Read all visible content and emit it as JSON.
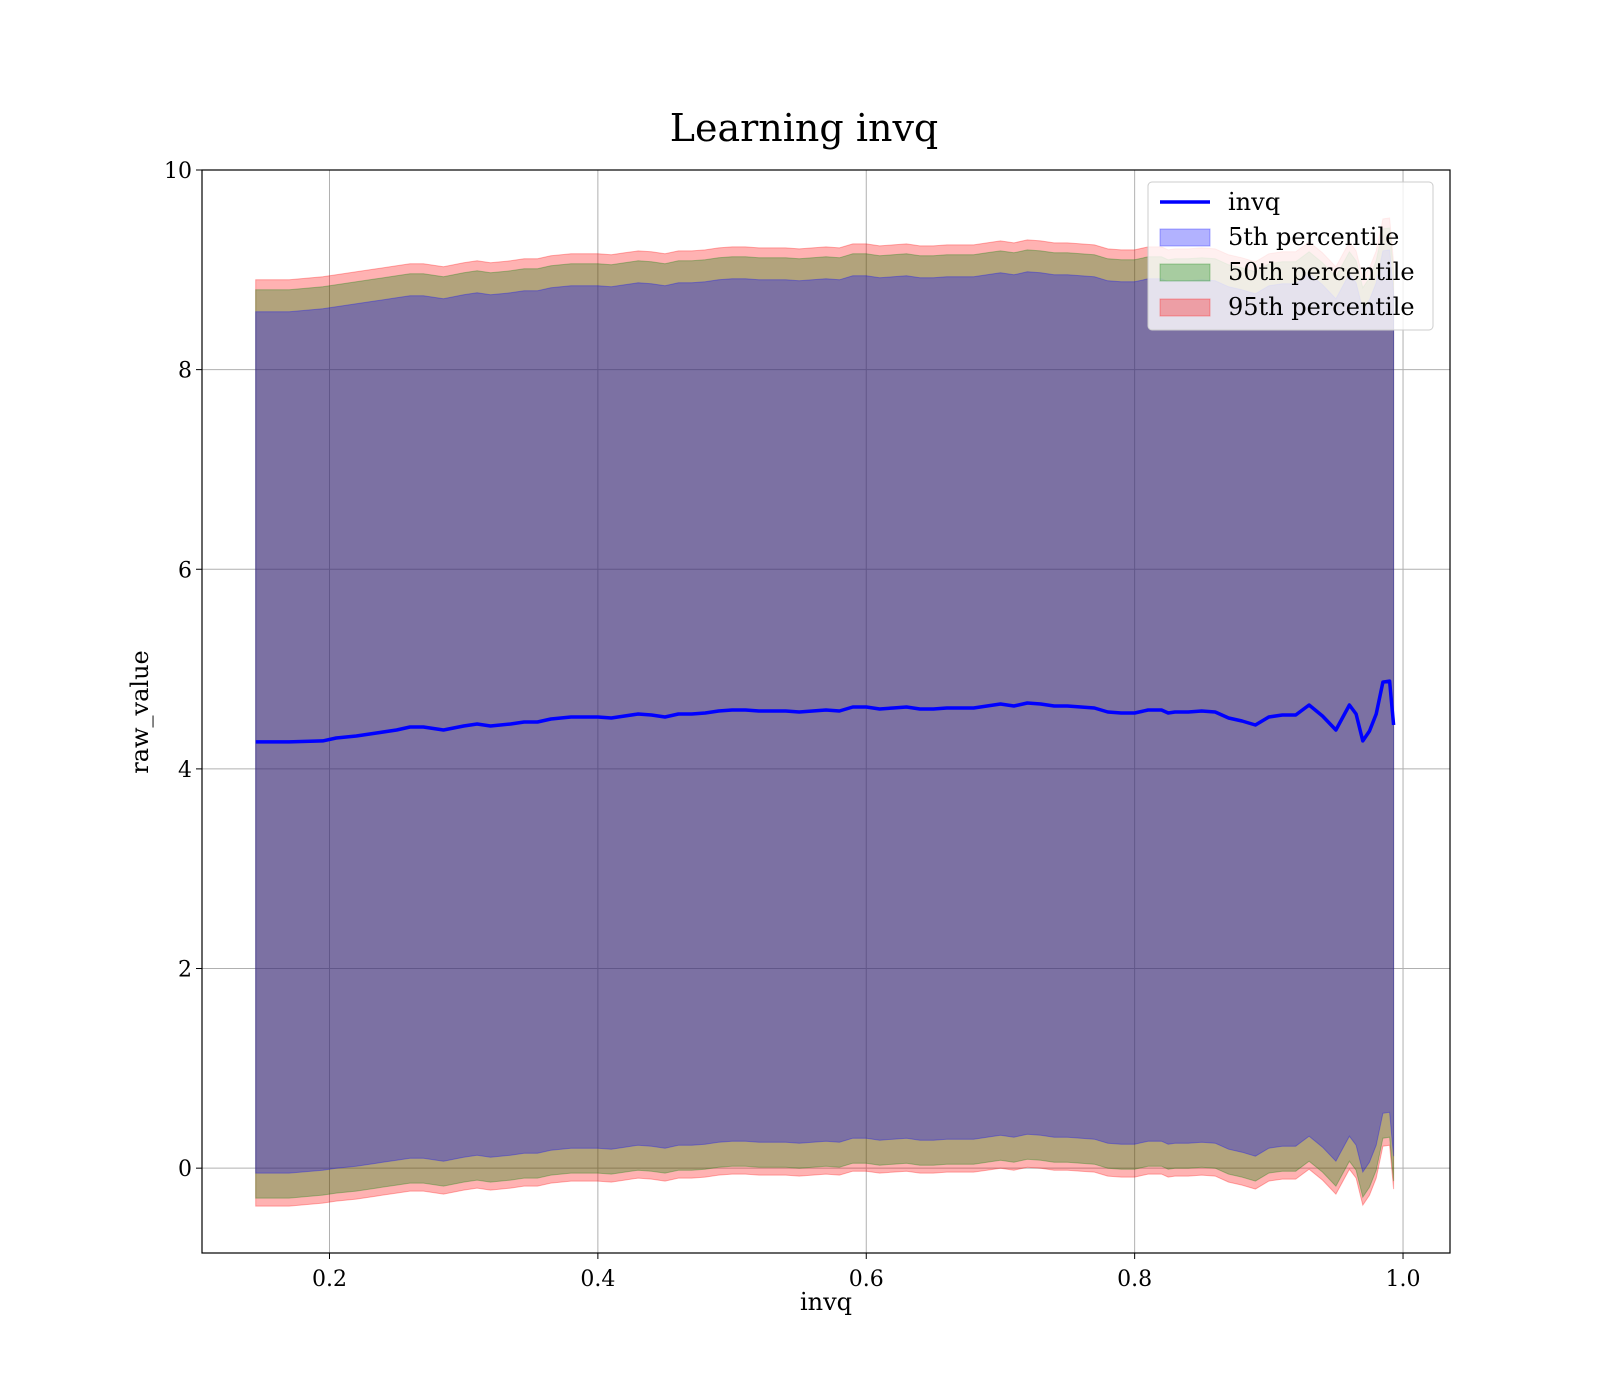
{
  "chart_data": {
    "type": "area",
    "title": "Learning invq",
    "xlabel": "invq",
    "ylabel": "raw_value",
    "xlim": [
      0.105,
      1.035
    ],
    "ylim": [
      -0.85,
      10.0
    ],
    "xticks": [
      0.2,
      0.4,
      0.6,
      0.8,
      1.0
    ],
    "xtick_labels": [
      "0.2",
      "0.4",
      "0.6",
      "0.8",
      "1.0"
    ],
    "yticks": [
      0,
      2,
      4,
      6,
      8,
      10
    ],
    "ytick_labels": [
      "0",
      "2",
      "4",
      "6",
      "8",
      "10"
    ],
    "grid": true,
    "legend_position": "top-right",
    "x": [
      0.145,
      0.17,
      0.195,
      0.205,
      0.22,
      0.235,
      0.25,
      0.26,
      0.27,
      0.285,
      0.3,
      0.31,
      0.32,
      0.335,
      0.345,
      0.355,
      0.365,
      0.38,
      0.39,
      0.4,
      0.41,
      0.42,
      0.43,
      0.44,
      0.45,
      0.46,
      0.47,
      0.48,
      0.49,
      0.5,
      0.51,
      0.52,
      0.53,
      0.54,
      0.55,
      0.56,
      0.57,
      0.58,
      0.59,
      0.6,
      0.61,
      0.62,
      0.63,
      0.64,
      0.65,
      0.66,
      0.67,
      0.68,
      0.69,
      0.7,
      0.71,
      0.72,
      0.73,
      0.74,
      0.75,
      0.76,
      0.77,
      0.78,
      0.79,
      0.8,
      0.81,
      0.82,
      0.825,
      0.83,
      0.84,
      0.85,
      0.86,
      0.87,
      0.88,
      0.89,
      0.9,
      0.91,
      0.92,
      0.93,
      0.94,
      0.95,
      0.96,
      0.965,
      0.97,
      0.975,
      0.98,
      0.985,
      0.99,
      0.993
    ],
    "series": [
      {
        "name": "invq",
        "color": "#0000ff",
        "values": [
          4.27,
          4.27,
          4.28,
          4.31,
          4.33,
          4.36,
          4.39,
          4.42,
          4.42,
          4.39,
          4.43,
          4.45,
          4.43,
          4.45,
          4.47,
          4.47,
          4.5,
          4.52,
          4.52,
          4.52,
          4.51,
          4.53,
          4.55,
          4.54,
          4.52,
          4.55,
          4.55,
          4.56,
          4.58,
          4.59,
          4.59,
          4.58,
          4.58,
          4.58,
          4.57,
          4.58,
          4.59,
          4.58,
          4.62,
          4.62,
          4.6,
          4.61,
          4.62,
          4.6,
          4.6,
          4.61,
          4.61,
          4.61,
          4.63,
          4.65,
          4.63,
          4.66,
          4.65,
          4.63,
          4.63,
          4.62,
          4.61,
          4.57,
          4.56,
          4.56,
          4.59,
          4.59,
          4.56,
          4.57,
          4.57,
          4.58,
          4.57,
          4.51,
          4.48,
          4.44,
          4.52,
          4.54,
          4.54,
          4.64,
          4.53,
          4.39,
          4.64,
          4.55,
          4.28,
          4.38,
          4.55,
          4.87,
          4.88,
          4.44
        ]
      },
      {
        "name": "5th percentile",
        "color": "#0000ff",
        "opacity": 0.3,
        "lower": [
          -0.05,
          -0.05,
          -0.02,
          0.0,
          0.02,
          0.05,
          0.08,
          0.1,
          0.1,
          0.07,
          0.11,
          0.13,
          0.11,
          0.13,
          0.15,
          0.15,
          0.18,
          0.2,
          0.2,
          0.2,
          0.19,
          0.21,
          0.23,
          0.22,
          0.2,
          0.23,
          0.23,
          0.24,
          0.26,
          0.27,
          0.27,
          0.26,
          0.26,
          0.26,
          0.25,
          0.26,
          0.27,
          0.26,
          0.3,
          0.3,
          0.28,
          0.29,
          0.3,
          0.28,
          0.28,
          0.29,
          0.29,
          0.29,
          0.31,
          0.33,
          0.31,
          0.34,
          0.33,
          0.31,
          0.31,
          0.3,
          0.29,
          0.25,
          0.24,
          0.24,
          0.27,
          0.27,
          0.24,
          0.25,
          0.25,
          0.26,
          0.25,
          0.19,
          0.16,
          0.12,
          0.2,
          0.22,
          0.22,
          0.32,
          0.21,
          0.07,
          0.32,
          0.23,
          -0.04,
          0.06,
          0.23,
          0.55,
          0.56,
          0.12
        ],
        "upper": [
          8.58,
          8.58,
          8.61,
          8.63,
          8.66,
          8.69,
          8.72,
          8.74,
          8.74,
          8.71,
          8.75,
          8.77,
          8.75,
          8.77,
          8.79,
          8.79,
          8.82,
          8.84,
          8.84,
          8.84,
          8.83,
          8.85,
          8.87,
          8.86,
          8.84,
          8.87,
          8.87,
          8.88,
          8.9,
          8.91,
          8.91,
          8.9,
          8.9,
          8.9,
          8.89,
          8.9,
          8.91,
          8.9,
          8.94,
          8.94,
          8.92,
          8.93,
          8.94,
          8.92,
          8.92,
          8.93,
          8.93,
          8.93,
          8.95,
          8.97,
          8.95,
          8.98,
          8.97,
          8.95,
          8.95,
          8.94,
          8.93,
          8.89,
          8.88,
          8.88,
          8.91,
          8.91,
          8.88,
          8.89,
          8.89,
          8.9,
          8.89,
          8.83,
          8.8,
          8.76,
          8.84,
          8.86,
          8.86,
          8.96,
          8.85,
          8.71,
          8.96,
          8.87,
          8.6,
          8.7,
          8.87,
          9.19,
          9.2,
          8.76
        ]
      },
      {
        "name": "50th percentile",
        "color": "#008000",
        "opacity": 0.3,
        "lower": [
          -0.3,
          -0.3,
          -0.27,
          -0.25,
          -0.23,
          -0.2,
          -0.17,
          -0.15,
          -0.15,
          -0.18,
          -0.14,
          -0.12,
          -0.14,
          -0.12,
          -0.1,
          -0.1,
          -0.07,
          -0.05,
          -0.05,
          -0.05,
          -0.06,
          -0.04,
          -0.02,
          -0.03,
          -0.05,
          -0.02,
          -0.02,
          -0.01,
          0.01,
          0.02,
          0.02,
          0.01,
          0.01,
          0.01,
          0.0,
          0.01,
          0.02,
          0.01,
          0.05,
          0.05,
          0.03,
          0.04,
          0.05,
          0.03,
          0.03,
          0.04,
          0.04,
          0.04,
          0.06,
          0.08,
          0.06,
          0.09,
          0.08,
          0.06,
          0.06,
          0.05,
          0.04,
          0.0,
          -0.01,
          -0.01,
          0.02,
          0.02,
          -0.01,
          0.0,
          0.0,
          0.01,
          0.0,
          -0.06,
          -0.09,
          -0.13,
          -0.05,
          -0.03,
          -0.03,
          0.07,
          -0.04,
          -0.18,
          0.07,
          -0.02,
          -0.29,
          -0.19,
          -0.02,
          0.3,
          0.31,
          -0.13
        ],
        "upper": [
          8.8,
          8.8,
          8.83,
          8.85,
          8.88,
          8.91,
          8.94,
          8.96,
          8.96,
          8.93,
          8.97,
          8.99,
          8.97,
          8.99,
          9.01,
          9.01,
          9.04,
          9.06,
          9.06,
          9.06,
          9.05,
          9.07,
          9.09,
          9.08,
          9.06,
          9.09,
          9.09,
          9.1,
          9.12,
          9.13,
          9.13,
          9.12,
          9.12,
          9.12,
          9.11,
          9.12,
          9.13,
          9.12,
          9.16,
          9.16,
          9.14,
          9.15,
          9.16,
          9.14,
          9.14,
          9.15,
          9.15,
          9.15,
          9.17,
          9.19,
          9.17,
          9.2,
          9.19,
          9.17,
          9.17,
          9.16,
          9.15,
          9.11,
          9.1,
          9.1,
          9.13,
          9.13,
          9.1,
          9.11,
          9.11,
          9.12,
          9.11,
          9.05,
          9.02,
          8.98,
          9.06,
          9.08,
          9.08,
          9.18,
          9.07,
          8.93,
          9.18,
          9.09,
          8.82,
          8.92,
          9.09,
          9.41,
          9.42,
          8.98
        ]
      },
      {
        "name": "95th percentile",
        "color": "#ff0000",
        "opacity": 0.3,
        "lower": [
          -0.38,
          -0.38,
          -0.35,
          -0.33,
          -0.31,
          -0.28,
          -0.25,
          -0.23,
          -0.23,
          -0.26,
          -0.22,
          -0.2,
          -0.22,
          -0.2,
          -0.18,
          -0.18,
          -0.15,
          -0.13,
          -0.13,
          -0.13,
          -0.14,
          -0.12,
          -0.1,
          -0.11,
          -0.13,
          -0.1,
          -0.1,
          -0.09,
          -0.07,
          -0.06,
          -0.06,
          -0.07,
          -0.07,
          -0.07,
          -0.08,
          -0.07,
          -0.06,
          -0.07,
          -0.03,
          -0.03,
          -0.05,
          -0.04,
          -0.03,
          -0.05,
          -0.05,
          -0.04,
          -0.04,
          -0.04,
          -0.02,
          0.0,
          -0.02,
          0.01,
          0.0,
          -0.02,
          -0.02,
          -0.03,
          -0.04,
          -0.08,
          -0.09,
          -0.09,
          -0.06,
          -0.06,
          -0.09,
          -0.08,
          -0.08,
          -0.07,
          -0.08,
          -0.14,
          -0.17,
          -0.21,
          -0.13,
          -0.11,
          -0.11,
          -0.01,
          -0.12,
          -0.26,
          -0.01,
          -0.1,
          -0.37,
          -0.27,
          -0.1,
          0.22,
          0.23,
          -0.21
        ],
        "upper": [
          8.9,
          8.9,
          8.93,
          8.95,
          8.98,
          9.01,
          9.04,
          9.06,
          9.06,
          9.03,
          9.07,
          9.09,
          9.07,
          9.09,
          9.11,
          9.11,
          9.14,
          9.16,
          9.16,
          9.16,
          9.15,
          9.17,
          9.19,
          9.18,
          9.16,
          9.19,
          9.19,
          9.2,
          9.22,
          9.23,
          9.23,
          9.22,
          9.22,
          9.22,
          9.21,
          9.22,
          9.23,
          9.22,
          9.26,
          9.26,
          9.24,
          9.25,
          9.26,
          9.24,
          9.24,
          9.25,
          9.25,
          9.25,
          9.27,
          9.29,
          9.27,
          9.3,
          9.29,
          9.27,
          9.27,
          9.26,
          9.25,
          9.21,
          9.2,
          9.2,
          9.23,
          9.23,
          9.2,
          9.21,
          9.21,
          9.22,
          9.21,
          9.15,
          9.12,
          9.08,
          9.16,
          9.18,
          9.18,
          9.28,
          9.17,
          9.03,
          9.28,
          9.19,
          8.92,
          9.02,
          9.19,
          9.51,
          9.52,
          9.08
        ]
      }
    ]
  }
}
